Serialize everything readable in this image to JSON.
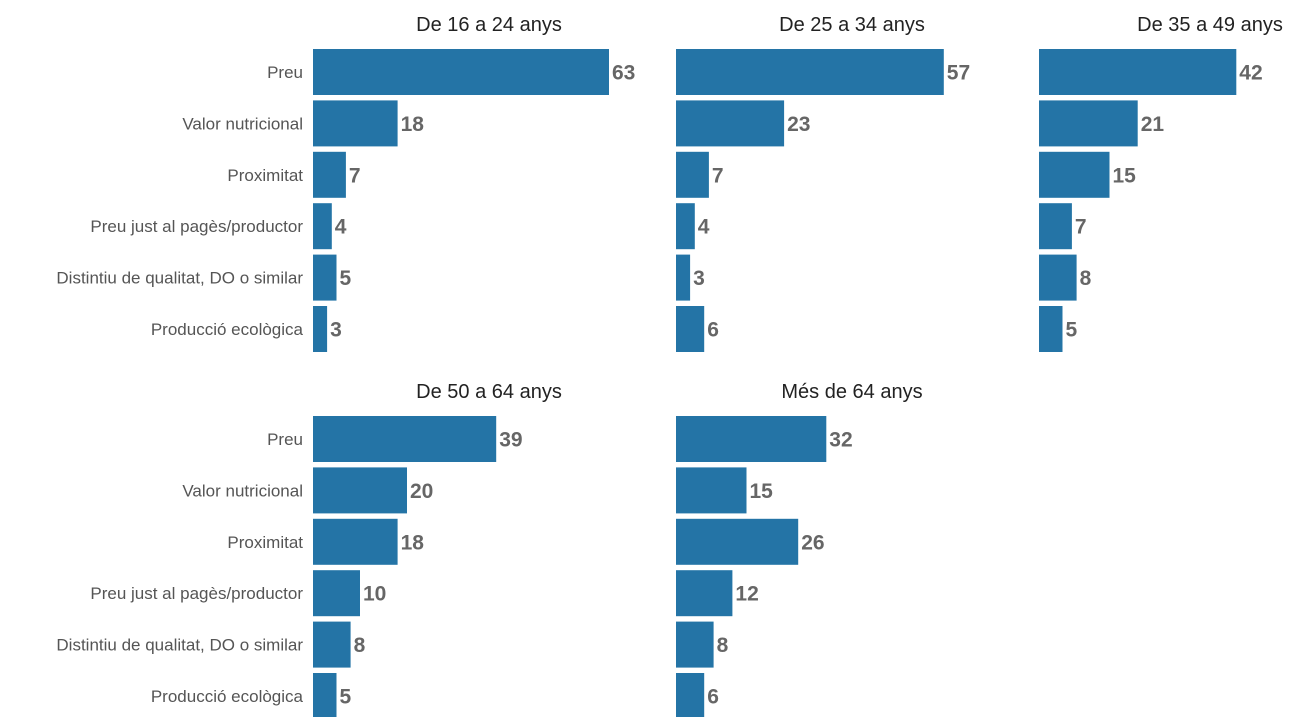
{
  "chart_data": {
    "type": "bar",
    "orientation": "horizontal",
    "layout": "facets",
    "bar_color": "#2474a6",
    "categories": [
      "Preu",
      "Valor nutricional",
      "Proximitat",
      "Preu just al pagès/productor",
      "Distintiu de qualitat, DO o similar",
      "Producció ecològica"
    ],
    "xlim": [
      0,
      63
    ],
    "grid": false,
    "legend": "none",
    "panels": [
      {
        "title": "De 16 a 24 anys",
        "values": [
          63,
          18,
          7,
          4,
          5,
          3
        ]
      },
      {
        "title": "De 25 a 34 anys",
        "values": [
          57,
          23,
          7,
          4,
          3,
          6
        ]
      },
      {
        "title": "De 35 a 49 anys",
        "values": [
          42,
          21,
          15,
          7,
          8,
          5
        ]
      },
      {
        "title": "De 50 a 64 anys",
        "values": [
          39,
          20,
          18,
          10,
          8,
          5
        ]
      },
      {
        "title": "Més de 64 anys",
        "values": [
          32,
          15,
          26,
          12,
          8,
          6
        ]
      }
    ]
  }
}
